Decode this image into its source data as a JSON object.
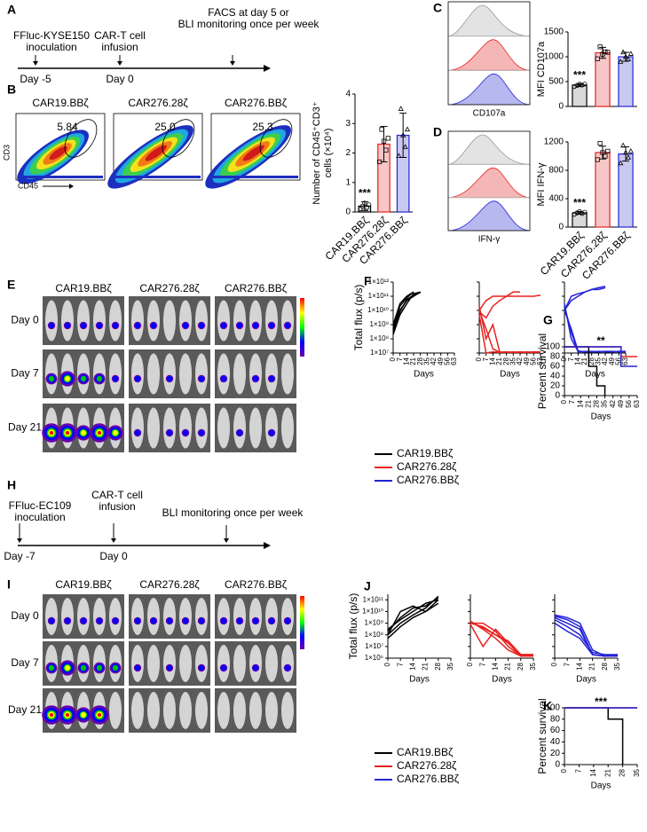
{
  "panel_labels": [
    "A",
    "B",
    "C",
    "D",
    "E",
    "F",
    "G",
    "H",
    "I",
    "J",
    "K"
  ],
  "timeline_a": {
    "events": [
      {
        "label": [
          "FFluc-KYSE150",
          "inoculation"
        ],
        "day": "Day -5"
      },
      {
        "label": [
          "CAR-T cell",
          "infusion"
        ],
        "day": "Day 0"
      },
      {
        "label": [
          "FACS at day 5 or",
          "BLI monitoring once per week"
        ]
      }
    ]
  },
  "flow_b": {
    "titles": [
      "CAR19.BBζ",
      "CAR276.28ζ",
      "CAR276.BBζ"
    ],
    "gates": [
      "5.84",
      "25.0",
      "25.3"
    ],
    "y_axis": "CD3",
    "x_axis": "CD45"
  },
  "histograms": [
    {
      "x_label": "CD107a"
    },
    {
      "x_label": "IFN-γ"
    }
  ],
  "bli_e": {
    "groups": [
      "CAR19.BBζ",
      "CAR276.28ζ",
      "CAR276.BBζ"
    ],
    "days": [
      "Day 0",
      "Day 7",
      "Day 21"
    ]
  },
  "legend_fg": {
    "entries": [
      {
        "name": "CAR19.BBζ",
        "color": "#000000"
      },
      {
        "name": "CAR276.28ζ",
        "color": "#e8211f"
      },
      {
        "name": "CAR276.BBζ",
        "color": "#2323d6"
      }
    ]
  },
  "timeline_h": {
    "events": [
      {
        "label": [
          "FFluc-EC109",
          "inoculation"
        ],
        "day": "Day -7"
      },
      {
        "label": [
          "CAR-T cell",
          "infusion"
        ],
        "day": "Day 0"
      },
      {
        "label": [
          "BLI monitoring once per week"
        ]
      }
    ]
  },
  "bli_i": {
    "groups": [
      "CAR19.BBζ",
      "CAR276.28ζ",
      "CAR276.BBζ"
    ],
    "days": [
      "Day 0",
      "Day 7",
      "Day 21"
    ]
  },
  "legend_jk": {
    "entries": [
      {
        "name": "CAR19.BBζ",
        "color": "#000000"
      },
      {
        "name": "CAR276.28ζ",
        "color": "#e8211f"
      },
      {
        "name": "CAR276.BBζ",
        "color": "#2323d6"
      }
    ]
  },
  "chart_data": [
    {
      "type": "bar",
      "ylabel": [
        "Number of CD45⁺CD3⁺",
        "cells (×10⁴)"
      ],
      "categories": [
        "CAR19.BBζ",
        "CAR276.28ζ",
        "CAR276.BBζ"
      ],
      "values": [
        0.2,
        2.3,
        2.6
      ],
      "errors": [
        0.15,
        0.6,
        0.75
      ],
      "points": [
        [
          0.1,
          0.2,
          0.3,
          0.15,
          0.25
        ],
        [
          1.7,
          2.8,
          2.4,
          2.1,
          2.5
        ],
        [
          1.9,
          3.5,
          2.6,
          2.2,
          2.8
        ]
      ],
      "colors": [
        "#d9d9d9",
        "#f7c6c6",
        "#c9c9ef"
      ],
      "edge_colors": [
        "#000000",
        "#e8211f",
        "#2323d6"
      ],
      "ylim": [
        0,
        4
      ],
      "yticks": [
        0,
        1,
        2,
        3,
        4
      ],
      "annotation": "***"
    },
    {
      "type": "bar",
      "ylabel": [
        "MFI CD107a"
      ],
      "values": [
        430,
        1080,
        1000
      ],
      "errors": [
        30,
        110,
        90
      ],
      "points": [
        [
          400,
          420,
          450,
          430,
          450
        ],
        [
          960,
          1200,
          1050,
          1100,
          1090
        ],
        [
          900,
          1090,
          1000,
          950,
          1060
        ]
      ],
      "colors": [
        "#d9d9d9",
        "#f7c6c6",
        "#c9c9ef"
      ],
      "edge_colors": [
        "#000000",
        "#e8211f",
        "#2323d6"
      ],
      "ylim": [
        0,
        1500
      ],
      "yticks": [
        0,
        500,
        1000,
        1500
      ],
      "annotation": "***"
    },
    {
      "type": "bar",
      "ylabel": [
        "MFI IFN-γ"
      ],
      "categories": [
        "CAR19.BBζ",
        "CAR276.28ζ",
        "CAR276.BBζ"
      ],
      "values": [
        200,
        1050,
        1030
      ],
      "errors": [
        20,
        90,
        100
      ],
      "points": [
        [
          180,
          200,
          220,
          190,
          210
        ],
        [
          950,
          1180,
          1050,
          1000,
          1070
        ],
        [
          900,
          1150,
          1050,
          980,
          1070
        ]
      ],
      "colors": [
        "#d9d9d9",
        "#f7c6c6",
        "#c9c9ef"
      ],
      "edge_colors": [
        "#000000",
        "#e8211f",
        "#2323d6"
      ],
      "ylim": [
        0,
        1200
      ],
      "yticks": [
        0,
        400,
        800,
        1200
      ],
      "annotation": "***"
    },
    {
      "type": "line",
      "log_y": true,
      "ylabel": "Total flux (p/s)",
      "xlabel": "Days",
      "x": [
        0,
        7,
        14,
        21,
        28,
        35,
        42,
        49,
        56,
        63
      ],
      "xlim": [
        0,
        63
      ],
      "xticks": [
        0,
        7,
        14,
        21,
        28,
        35,
        42,
        49,
        56,
        63
      ],
      "ylim": [
        10000000.0,
        1000000000000.0
      ],
      "yticks": [
        {
          "value": 10000000.0,
          "label": "1×10⁷"
        },
        {
          "value": 100000000.0,
          "label": "1×10⁸"
        },
        {
          "value": 1000000000.0,
          "label": "1×10⁹"
        },
        {
          "value": 10000000000.0,
          "label": "1×10¹⁰"
        },
        {
          "value": 100000000000.0,
          "label": "1×10¹¹"
        },
        {
          "value": 1000000000000.0,
          "label": "1×10¹²"
        }
      ],
      "series": [
        {
          "color": "#000000",
          "values": [
            300000000.0,
            10000000000.0,
            50000000000.0,
            100000000000.0,
            200000000000.0,
            null,
            null,
            null,
            null,
            null
          ]
        },
        {
          "color": "#000000",
          "values": [
            500000000.0,
            20000000000.0,
            80000000000.0,
            200000000000.0,
            null,
            null,
            null,
            null,
            null,
            null
          ]
        },
        {
          "color": "#000000",
          "values": [
            200000000.0,
            5000000000.0,
            30000000000.0,
            150000000000.0,
            200000000000.0,
            null,
            null,
            null,
            null,
            null
          ]
        },
        {
          "color": "#000000",
          "values": [
            400000000.0,
            8000000000.0,
            60000000000.0,
            120000000000.0,
            180000000000.0,
            null,
            null,
            null,
            null,
            null
          ]
        },
        {
          "color": "#000000",
          "values": [
            1000000000.0,
            30000000000.0,
            100000000000.0,
            200000000000.0,
            null,
            null,
            null,
            null,
            null,
            null
          ]
        }
      ]
    },
    {
      "type": "line",
      "log_y": true,
      "sharey": true,
      "xlabel": "Days",
      "x": [
        0,
        7,
        14,
        21,
        28,
        35,
        42,
        49,
        56,
        63
      ],
      "xlim": [
        0,
        63
      ],
      "xticks": [
        0,
        7,
        14,
        21,
        28,
        35,
        42,
        49,
        56,
        63
      ],
      "ylim": [
        10000000.0,
        1000000000000.0
      ],
      "series": [
        {
          "color": "#e8211f",
          "values": [
            10000000000.0,
            50000000000.0,
            100000000000.0,
            100000000000.0,
            100000000000.0,
            100000000000.0,
            100000000000.0,
            100000000000.0,
            100000000000.0,
            120000000000.0
          ]
        },
        {
          "color": "#e8211f",
          "values": [
            8000000000.0,
            3000000000.0,
            20000000000.0,
            50000000000.0,
            100000000000.0,
            200000000000.0,
            200000000000.0,
            null,
            null,
            null
          ]
        },
        {
          "color": "#e8211f",
          "values": [
            5000000000.0,
            10000000.0,
            12000000.0,
            11000000.0,
            12000000.0,
            11000000.0,
            12000000.0,
            11000000.0,
            12000000.0,
            12000000.0
          ]
        },
        {
          "color": "#e8211f",
          "values": [
            20000000000.0,
            100000000.0,
            1000000000.0,
            12000000.0,
            11000000.0,
            12000000.0,
            11000000.0,
            12000000.0,
            11000000.0,
            12000000.0
          ]
        },
        {
          "color": "#e8211f",
          "values": [
            10000000000.0,
            500000000.0,
            20000000.0,
            11000000.0,
            12000000.0,
            11000000.0,
            12000000.0,
            11000000.0,
            12000000.0,
            11000000.0
          ]
        }
      ]
    },
    {
      "type": "line",
      "log_y": true,
      "sharey": true,
      "xlabel": "Days",
      "x": [
        0,
        7,
        14,
        21,
        28,
        35,
        42,
        49,
        56,
        63
      ],
      "xlim": [
        0,
        63
      ],
      "xticks": [
        0,
        7,
        14,
        21,
        28,
        35,
        42,
        49,
        56,
        63
      ],
      "ylim": [
        10000000.0,
        1000000000000.0
      ],
      "series": [
        {
          "color": "#2323d6",
          "values": [
            10000000000.0,
            100000000000.0,
            150000000000.0,
            200000000000.0,
            300000000000.0,
            400000000000.0,
            500000000000.0,
            null,
            null,
            null
          ]
        },
        {
          "color": "#2323d6",
          "values": [
            10000000000.0,
            50000000000.0,
            100000000000.0,
            200000000000.0,
            300000000000.0,
            300000000000.0,
            400000000000.0,
            null,
            null,
            null
          ]
        },
        {
          "color": "#2323d6",
          "values": [
            30000000000.0,
            100000000.0,
            13000000.0,
            12000000.0,
            13000000.0,
            12000000.0,
            13000000.0,
            12000000.0,
            13000000.0,
            13000000.0
          ]
        },
        {
          "color": "#2323d6",
          "values": [
            10000000000.0,
            500000000.0,
            14000000.0,
            12000000.0,
            12000000.0,
            13000000.0,
            12000000.0,
            12000000.0,
            13000000.0,
            12000000.0
          ]
        },
        {
          "color": "#2323d6",
          "values": [
            20000000000.0,
            300000000.0,
            12000000.0,
            13000000.0,
            12000000.0,
            12000000.0,
            13000000.0,
            13000000.0,
            12000000.0,
            13000000.0
          ]
        }
      ]
    },
    {
      "type": "line",
      "drawstyle": "steps-post",
      "ylabel": "Percent survival",
      "xlabel": "Days",
      "annotation": "**",
      "xlim": [
        0,
        63
      ],
      "xticks": [
        0,
        7,
        14,
        21,
        28,
        35,
        42,
        49,
        56,
        63
      ],
      "ylim": [
        0,
        100
      ],
      "yticks": [
        0,
        20,
        40,
        60,
        80,
        100
      ],
      "series": [
        {
          "color": "#000000",
          "x": [
            0,
            21,
            28,
            35
          ],
          "values": [
            100,
            60,
            20,
            0
          ]
        },
        {
          "color": "#e8211f",
          "x": [
            0,
            49,
            63
          ],
          "values": [
            100,
            80,
            80
          ]
        },
        {
          "color": "#2323d6",
          "x": [
            0,
            49,
            63
          ],
          "values": [
            100,
            60,
            60
          ]
        }
      ]
    },
    {
      "type": "line",
      "log_y": true,
      "ylabel": "Total flux (p/s)",
      "xlabel": "Days",
      "x": [
        0,
        7,
        14,
        21,
        28,
        35
      ],
      "xlim": [
        0,
        35
      ],
      "xticks": [
        0,
        7,
        14,
        21,
        28,
        35
      ],
      "ylim": [
        1000000.0,
        300000000000.0
      ],
      "yticks": [
        {
          "value": 1000000.0,
          "label": "1×10⁶"
        },
        {
          "value": 10000000.0,
          "label": "1×10⁷"
        },
        {
          "value": 100000000.0,
          "label": "1×10⁸"
        },
        {
          "value": 1000000000.0,
          "label": "1×10⁹"
        },
        {
          "value": 10000000000.0,
          "label": "1×10¹⁰"
        },
        {
          "value": 100000000000.0,
          "label": "1×10¹¹"
        }
      ],
      "series": [
        {
          "color": "#000000",
          "values": [
            100000000.0,
            1000000000.0,
            5000000000.0,
            20000000000.0,
            200000000000.0,
            null
          ]
        },
        {
          "color": "#000000",
          "values": [
            300000000.0,
            2000000000.0,
            10000000000.0,
            50000000000.0,
            100000000000.0,
            null
          ]
        },
        {
          "color": "#000000",
          "values": [
            50000000.0,
            500000000.0,
            3000000000.0,
            10000000000.0,
            100000000000.0,
            null
          ]
        },
        {
          "color": "#000000",
          "values": [
            200000000.0,
            3000000000.0,
            20000000000.0,
            30000000000.0,
            150000000000.0,
            null
          ]
        },
        {
          "color": "#000000",
          "values": [
            100000000.0,
            10000000000.0,
            30000000000.0,
            10000000000.0,
            50000000000.0,
            null
          ]
        }
      ]
    },
    {
      "type": "line",
      "log_y": true,
      "sharey": true,
      "xlabel": "Days",
      "x": [
        0,
        7,
        14,
        21,
        28,
        35
      ],
      "xlim": [
        0,
        35
      ],
      "xticks": [
        0,
        7,
        14,
        21,
        28,
        35
      ],
      "ylim": [
        1000000.0,
        300000000000.0
      ],
      "series": [
        {
          "color": "#e8211f",
          "values": [
            1000000000.0,
            500000000.0,
            100000000.0,
            30000000.0,
            2000000.0,
            2000000.0
          ]
        },
        {
          "color": "#e8211f",
          "values": [
            1000000000.0,
            1000000000.0,
            200000000.0,
            10000000.0,
            1500000.0,
            2000000.0
          ]
        },
        {
          "color": "#e8211f",
          "values": [
            800000000.0,
            10000000.0,
            300000000.0,
            20000000.0,
            1500000.0,
            1500000.0
          ]
        },
        {
          "color": "#e8211f",
          "values": [
            1500000000.0,
            300000000.0,
            50000000.0,
            5000000.0,
            1500000.0,
            1500000.0
          ]
        },
        {
          "color": "#e8211f",
          "values": [
            1200000000.0,
            400000000.0,
            100000000.0,
            20000000.0,
            2000000.0,
            2000000.0
          ]
        }
      ]
    },
    {
      "type": "line",
      "log_y": true,
      "sharey": true,
      "xlabel": "Days",
      "x": [
        0,
        7,
        14,
        21,
        28,
        35
      ],
      "xlim": [
        0,
        35
      ],
      "xticks": [
        0,
        7,
        14,
        21,
        28,
        35
      ],
      "ylim": [
        1000000.0,
        300000000000.0
      ],
      "series": [
        {
          "color": "#2323d6",
          "values": [
            3000000000.0,
            1000000000.0,
            300000000.0,
            2000000.0,
            1500000.0,
            2000000.0
          ]
        },
        {
          "color": "#2323d6",
          "values": [
            2000000000.0,
            500000000.0,
            100000000.0,
            3000000.0,
            2000000.0,
            2000000.0
          ]
        },
        {
          "color": "#2323d6",
          "values": [
            5000000000.0,
            3000000000.0,
            1000000000.0,
            5000000.0,
            1500000.0,
            1500000.0
          ]
        },
        {
          "color": "#2323d6",
          "values": [
            1000000000.0,
            200000000.0,
            50000000.0,
            2000000.0,
            1500000.0,
            1800000.0
          ]
        },
        {
          "color": "#2323d6",
          "values": [
            4000000000.0,
            2000000000.0,
            500000000.0,
            2000000.0,
            1500000.0,
            1500000.0
          ]
        }
      ]
    },
    {
      "type": "line",
      "drawstyle": "steps-post",
      "ylabel": "Percent survival",
      "xlabel": "Days",
      "annotation": "***",
      "xlim": [
        0,
        35
      ],
      "xticks": [
        0,
        7,
        14,
        21,
        28,
        35
      ],
      "ylim": [
        0,
        100
      ],
      "yticks": [
        0,
        20,
        40,
        60,
        80,
        100
      ],
      "series": [
        {
          "color": "#000000",
          "x": [
            0,
            21,
            28
          ],
          "values": [
            100,
            80,
            0
          ]
        },
        {
          "color": "#e8211f",
          "x": [
            0,
            35
          ],
          "values": [
            100,
            100
          ]
        },
        {
          "color": "#2323d6",
          "x": [
            0,
            35
          ],
          "values": [
            100,
            100
          ]
        }
      ]
    }
  ]
}
